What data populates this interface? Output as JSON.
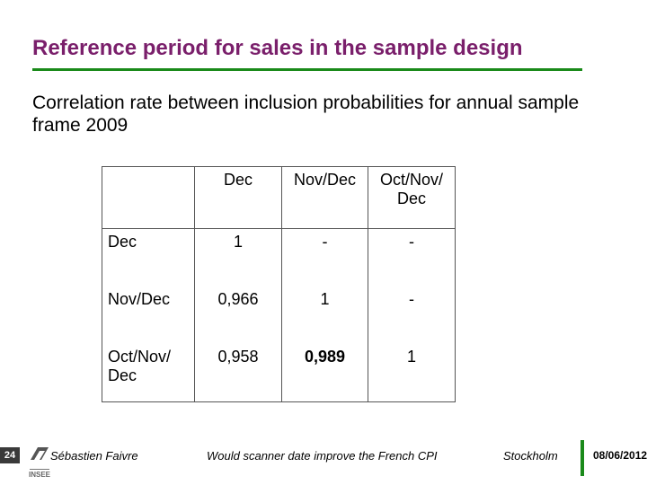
{
  "title": "Reference period for sales in the sample design",
  "subtitle": "Correlation rate between inclusion probabilities for annual sample frame 2009",
  "colors": {
    "title": "#7a1f6b",
    "rule": "#1a8a1a",
    "page_num_bg": "#3a3a3a"
  },
  "table": {
    "headers": [
      "",
      "Dec",
      "Nov/Dec",
      "Oct/Nov/ Dec"
    ],
    "rows": [
      {
        "label": "Dec",
        "cells": [
          "1",
          "-",
          "-"
        ]
      },
      {
        "label": "Nov/Dec",
        "cells": [
          "0,966",
          "1",
          "-"
        ]
      },
      {
        "label": "Oct/Nov/ Dec",
        "cells": [
          "0,958",
          "0,989",
          "1"
        ]
      }
    ]
  },
  "footer": {
    "page_number": "24",
    "author": "Sébastien Faivre",
    "talk": "Would scanner date improve the French CPI",
    "place": "Stockholm",
    "date": "08/06/2012",
    "logo_text": "INSEE"
  }
}
